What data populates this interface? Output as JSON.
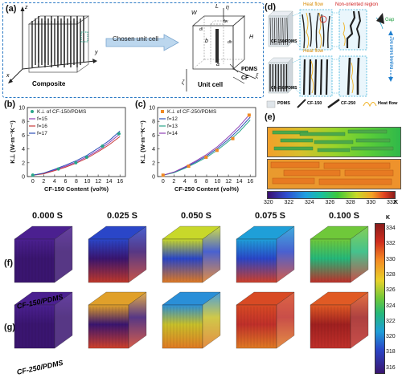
{
  "panels": {
    "a": {
      "label": "(a)",
      "composite_label": "Composite",
      "arrow_label": "Chosen unit cell",
      "unit_cell_label": "Unit cell",
      "axes": {
        "z": "z",
        "x": "x",
        "y": "y",
        "zeta": "ζ",
        "eta": "η",
        "xi": "ξ"
      },
      "dims": {
        "W": "W",
        "L": "L",
        "H": "H",
        "a": "a",
        "b": "b",
        "dl": "dl",
        "dw": "dw",
        "dh": "dh"
      },
      "mat_labels": {
        "pdms": "PDMS",
        "cf": "CF"
      }
    },
    "b": {
      "label": "(b)",
      "legend_title": "K⊥ of CF-150/PDMS",
      "legend": [
        "f=15",
        "f=16",
        "f=17"
      ]
    },
    "c": {
      "label": "(c)",
      "legend_title": "K⊥ of CF-250/PDMS",
      "legend": [
        "f=12",
        "f=13",
        "f=14"
      ]
    },
    "d": {
      "label": "(d)",
      "heat_flow": "Heat flow",
      "non_oriented": "Non-oriented region",
      "gap": "Gap",
      "side_note": "The same heating",
      "row_labels": [
        "CF-150/PDMS",
        "CF-250/PDMS"
      ],
      "legend": [
        "PDMS",
        "CF-150",
        "CF-250",
        "Heat flow"
      ]
    },
    "e": {
      "label": "(e)",
      "colorbar_ticks": [
        "320",
        "322",
        "324",
        "326",
        "328",
        "330",
        "332"
      ],
      "unit": "K"
    },
    "f": {
      "label": "(f)",
      "sample": "CF-150/PDMS"
    },
    "g": {
      "label": "(g)",
      "sample": "CF-250/PDMS"
    },
    "times": [
      "0.000 S",
      "0.025 S",
      "0.050 S",
      "0.075 S",
      "0.100 S"
    ],
    "colorbar_fg": {
      "unit": "K",
      "ticks": [
        "334",
        "332",
        "330",
        "328",
        "326",
        "324",
        "322",
        "320",
        "318",
        "316"
      ]
    }
  },
  "chart_data": [
    {
      "type": "line",
      "title": "",
      "xlabel": "CF-150 Content (vol%)",
      "ylabel": "K⊥ (W·m⁻¹K⁻¹)",
      "xlim": [
        -1,
        17
      ],
      "ylim": [
        0,
        10
      ],
      "xticks": [
        "0",
        "2",
        "4",
        "6",
        "8",
        "10",
        "12",
        "14",
        "16"
      ],
      "yticks": [
        "0",
        "2",
        "4",
        "6",
        "8",
        "10"
      ],
      "scatter": {
        "name": "K⊥ of CF-150/PDMS",
        "x": [
          0,
          4.7,
          7.9,
          9.9,
          12.8,
          15.8
        ],
        "y": [
          0.2,
          1.1,
          2.0,
          2.8,
          4.4,
          6.2
        ]
      },
      "series": [
        {
          "name": "f=15",
          "x": [
            0,
            2,
            4,
            6,
            8,
            10,
            12,
            14,
            16
          ],
          "y": [
            0.2,
            0.45,
            0.95,
            1.5,
            2.1,
            2.9,
            3.8,
            4.9,
            6.2
          ]
        },
        {
          "name": "f=16",
          "x": [
            0,
            2,
            4,
            6,
            8,
            10,
            12,
            14,
            16
          ],
          "y": [
            0.2,
            0.4,
            0.85,
            1.35,
            1.95,
            2.7,
            3.6,
            4.6,
            5.8
          ]
        },
        {
          "name": "f=17",
          "x": [
            0,
            2,
            4,
            6,
            8,
            10,
            12,
            14,
            16
          ],
          "y": [
            0.2,
            0.5,
            1.05,
            1.65,
            2.3,
            3.1,
            4.1,
            5.2,
            6.6
          ]
        }
      ],
      "colors": [
        "#2aa58a",
        "#8e3fb5",
        "#c83a3a",
        "#2f4fb8"
      ]
    },
    {
      "type": "line",
      "title": "",
      "xlabel": "CF-250 Content (vol%)",
      "ylabel": "K⊥ (W·m⁻¹K⁻¹)",
      "xlim": [
        -1,
        17
      ],
      "ylim": [
        0,
        10
      ],
      "xticks": [
        "0",
        "2",
        "4",
        "6",
        "8",
        "10",
        "12",
        "14",
        "16"
      ],
      "yticks": [
        "0",
        "2",
        "4",
        "6",
        "8",
        "10"
      ],
      "scatter": {
        "name": "K⊥ of CF-250/PDMS",
        "x": [
          0,
          4.7,
          7.9,
          9.9,
          12.8,
          15.8
        ],
        "y": [
          0.2,
          1.5,
          2.8,
          3.8,
          5.5,
          8.9
        ]
      },
      "series": [
        {
          "name": "f=12",
          "x": [
            0,
            2,
            4,
            6,
            8,
            10,
            12,
            14,
            16
          ],
          "y": [
            0.2,
            0.6,
            1.3,
            2.1,
            3.0,
            4.1,
            5.4,
            6.9,
            8.6
          ]
        },
        {
          "name": "f=13",
          "x": [
            0,
            2,
            4,
            6,
            8,
            10,
            12,
            14,
            16
          ],
          "y": [
            0.2,
            0.55,
            1.2,
            1.95,
            2.8,
            3.85,
            5.1,
            6.5,
            8.2
          ]
        },
        {
          "name": "f=14",
          "x": [
            0,
            2,
            4,
            6,
            8,
            10,
            12,
            14,
            16
          ],
          "y": [
            0.2,
            0.65,
            1.4,
            2.25,
            3.2,
            4.35,
            5.75,
            7.3,
            9.1
          ]
        }
      ],
      "colors": [
        "#f08a24",
        "#2f4fb8",
        "#2aa58a",
        "#8e3fb5"
      ]
    }
  ]
}
